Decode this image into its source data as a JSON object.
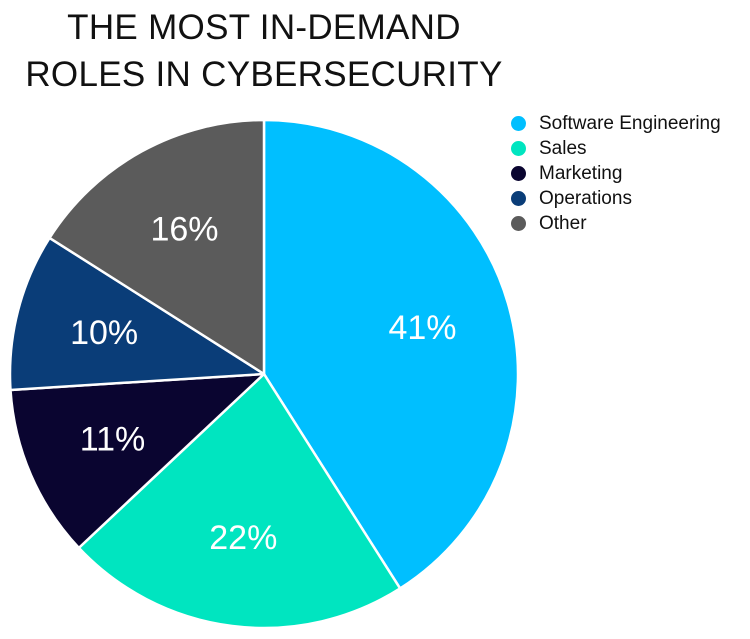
{
  "chart_data": {
    "type": "pie",
    "title": "THE MOST IN-DEMAND ROLES IN CYBERSECURITY",
    "title_lines": [
      "THE MOST IN-DEMAND",
      "ROLES IN CYBERSECURITY"
    ],
    "categories": [
      "Software Engineering",
      "Sales",
      "Marketing",
      "Operations",
      "Other"
    ],
    "values": [
      41,
      22,
      11,
      10,
      16
    ],
    "labels": [
      "41%",
      "22%",
      "11%",
      "10%",
      "16%"
    ],
    "colors": [
      "#00bfff",
      "#00e5c0",
      "#0a0530",
      "#0a3d78",
      "#5b5b5b"
    ],
    "legend_position": "top-right",
    "start_angle": "12 o'clock",
    "direction": "clockwise"
  }
}
